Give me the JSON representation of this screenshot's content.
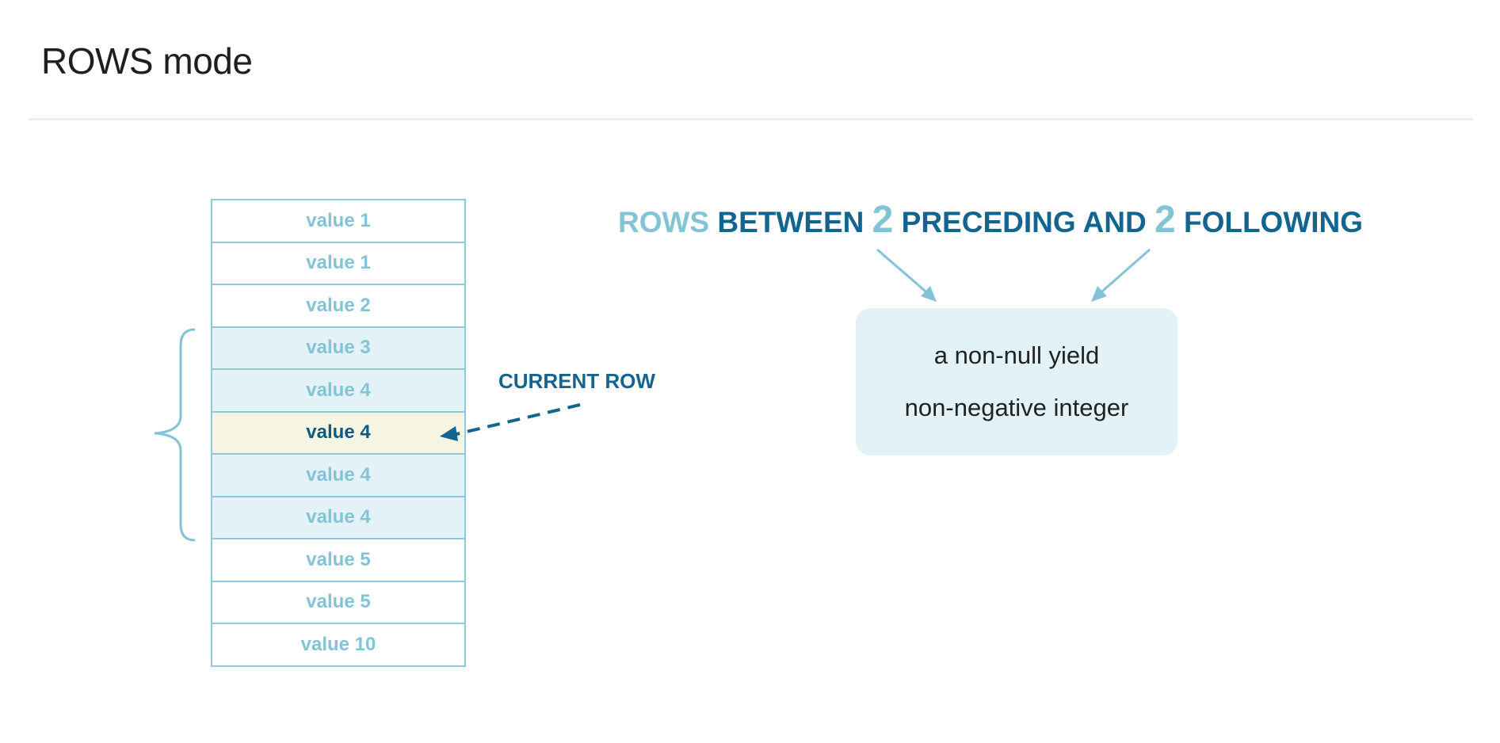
{
  "page": {
    "title": "ROWS mode"
  },
  "table": {
    "rows": [
      {
        "label": "value 1",
        "state": "outside"
      },
      {
        "label": "value 1",
        "state": "outside"
      },
      {
        "label": "value 2",
        "state": "outside"
      },
      {
        "label": "value 3",
        "state": "in-frame"
      },
      {
        "label": "value 4",
        "state": "in-frame"
      },
      {
        "label": "value 4",
        "state": "current"
      },
      {
        "label": "value 4",
        "state": "in-frame"
      },
      {
        "label": "value 4",
        "state": "in-frame"
      },
      {
        "label": "value 5",
        "state": "outside"
      },
      {
        "label": "value 5",
        "state": "outside"
      },
      {
        "label": "value 10",
        "state": "outside"
      }
    ]
  },
  "current_row": {
    "label": "CURRENT ROW"
  },
  "syntax": {
    "rows": "ROWS",
    "between": "BETWEEN",
    "preceding_count": "2",
    "preceding_and": "PRECEDING AND",
    "following_count": "2",
    "following": "FOLLOWING"
  },
  "info_box": {
    "line1": "a non-null yield",
    "line2": "non-negative integer"
  },
  "colors": {
    "dark_blue": "#13648f",
    "light_blue": "#82c4d6",
    "frame_fill": "#e2f2f7",
    "current_fill": "#f5f5e1",
    "border": "#8ecad9"
  }
}
